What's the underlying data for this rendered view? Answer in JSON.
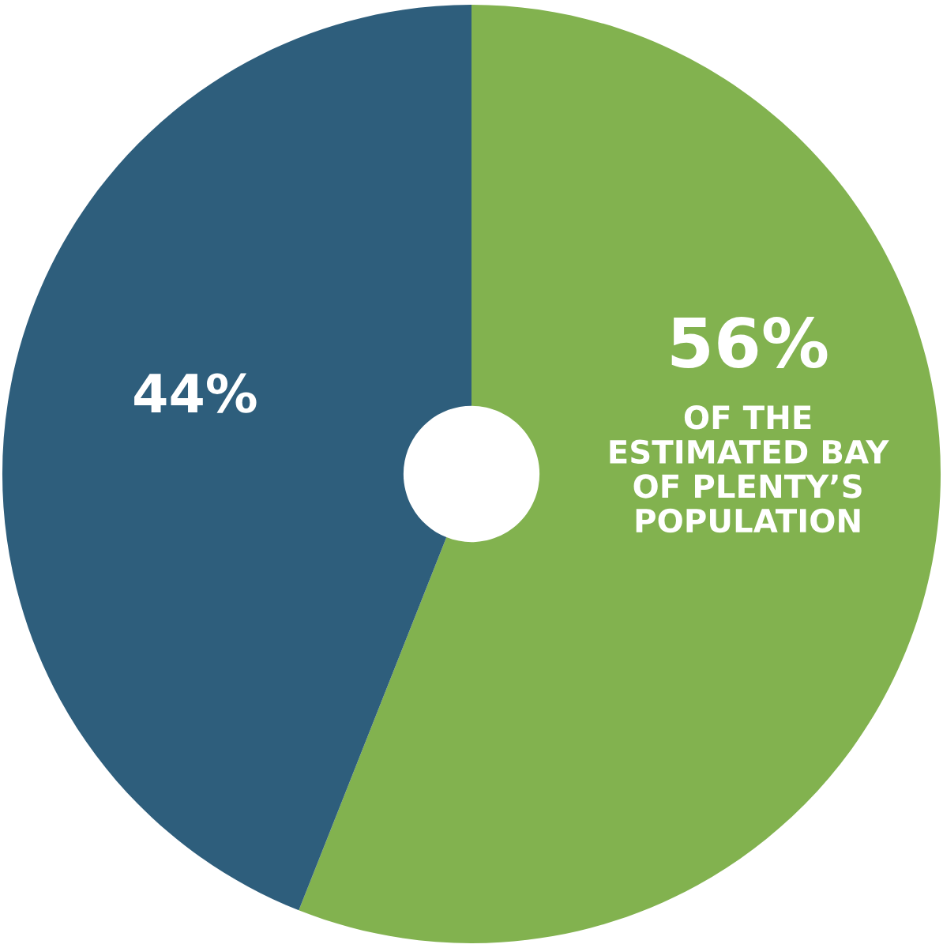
{
  "chart_data": {
    "type": "donut",
    "categories": [
      null,
      null
    ],
    "values": [
      56,
      44
    ],
    "colors": [
      "#82b24f",
      "#2e5e7c"
    ],
    "value_labels": [
      "56%",
      "44%"
    ],
    "annotations": [
      "OF THE\nESTIMATED BAY\nOF PLENTY’S\nPOPULATION"
    ],
    "legend": false
  }
}
